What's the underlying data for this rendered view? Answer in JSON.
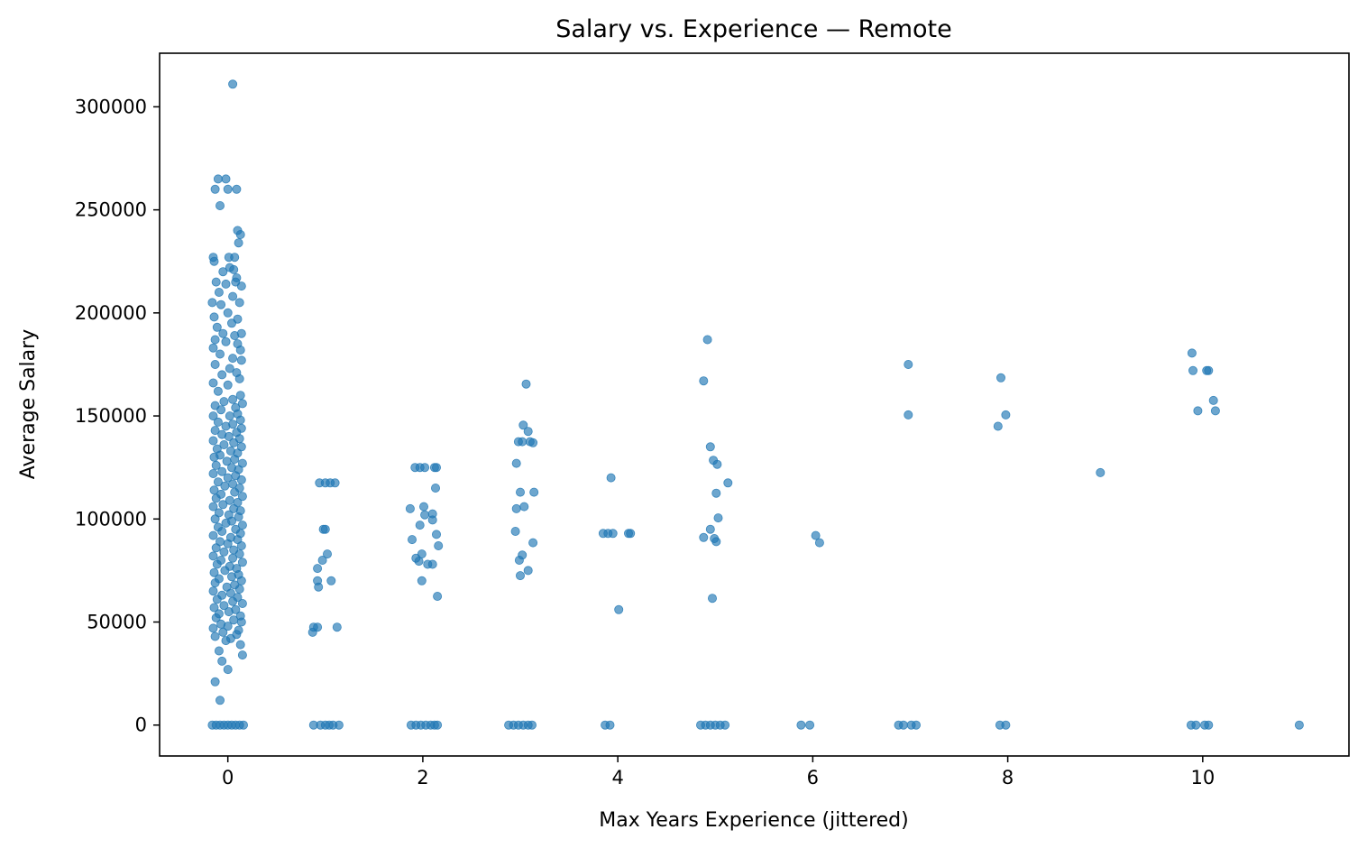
{
  "chart_data": {
    "type": "scatter",
    "title": "Salary vs. Experience — Remote",
    "xlabel": "Max Years Experience (jittered)",
    "ylabel": "Average Salary",
    "xlim": [
      -0.7,
      11.5
    ],
    "ylim": [
      -15000,
      326000
    ],
    "xticks": [
      0,
      2,
      4,
      6,
      8,
      10
    ],
    "yticks": [
      0,
      50000,
      100000,
      150000,
      200000,
      250000,
      300000
    ],
    "grid": false,
    "legend": "none",
    "color": "#1f77b4",
    "series": [
      {
        "points": [
          [
            0.05,
            311000
          ],
          [
            -0.1,
            265000
          ],
          [
            -0.02,
            265000
          ],
          [
            -0.13,
            260000
          ],
          [
            0.0,
            260000
          ],
          [
            0.09,
            260000
          ],
          [
            -0.08,
            252000
          ],
          [
            0.1,
            240000
          ],
          [
            0.13,
            238000
          ],
          [
            0.11,
            234000
          ],
          [
            -0.15,
            227000
          ],
          [
            0.01,
            227000
          ],
          [
            0.07,
            227000
          ],
          [
            -0.14,
            225000
          ],
          [
            0.02,
            222000
          ],
          [
            0.06,
            221000
          ],
          [
            -0.05,
            220000
          ],
          [
            0.09,
            217000
          ],
          [
            -0.12,
            215000
          ],
          [
            0.08,
            215000
          ],
          [
            -0.02,
            214000
          ],
          [
            0.14,
            213000
          ],
          [
            -0.09,
            210000
          ],
          [
            0.05,
            208000
          ],
          [
            -0.16,
            205000
          ],
          [
            0.12,
            205000
          ],
          [
            -0.07,
            204000
          ],
          [
            0.0,
            200000
          ],
          [
            -0.14,
            198000
          ],
          [
            0.1,
            197000
          ],
          [
            0.04,
            195000
          ],
          [
            -0.11,
            193000
          ],
          [
            -0.05,
            190000
          ],
          [
            0.14,
            190000
          ],
          [
            0.07,
            189000
          ],
          [
            -0.13,
            187000
          ],
          [
            -0.02,
            186000
          ],
          [
            0.1,
            185000
          ],
          [
            -0.15,
            183000
          ],
          [
            0.13,
            182000
          ],
          [
            -0.08,
            180000
          ],
          [
            0.05,
            178000
          ],
          [
            0.14,
            177000
          ],
          [
            -0.13,
            175000
          ],
          [
            0.02,
            173000
          ],
          [
            0.09,
            171000
          ],
          [
            -0.06,
            170000
          ],
          [
            0.12,
            168000
          ],
          [
            -0.15,
            166000
          ],
          [
            0.0,
            165000
          ],
          [
            -0.1,
            162000
          ],
          [
            0.13,
            160000
          ],
          [
            0.05,
            158000
          ],
          [
            -0.04,
            157000
          ],
          [
            0.15,
            156000
          ],
          [
            -0.13,
            155000
          ],
          [
            0.08,
            154000
          ],
          [
            -0.07,
            153000
          ],
          [
            0.1,
            151000
          ],
          [
            -0.15,
            150000
          ],
          [
            0.02,
            150000
          ],
          [
            0.13,
            148000
          ],
          [
            -0.1,
            147000
          ],
          [
            0.05,
            146000
          ],
          [
            -0.02,
            145000
          ],
          [
            0.14,
            144000
          ],
          [
            -0.13,
            143000
          ],
          [
            0.09,
            142000
          ],
          [
            -0.06,
            141000
          ],
          [
            0.01,
            140000
          ],
          [
            0.12,
            139000
          ],
          [
            -0.15,
            138000
          ],
          [
            0.06,
            137000
          ],
          [
            -0.04,
            136000
          ],
          [
            0.14,
            135000
          ],
          [
            -0.11,
            134000
          ],
          [
            0.03,
            133000
          ],
          [
            0.1,
            132000
          ],
          [
            -0.08,
            131000
          ],
          [
            -0.14,
            130000
          ],
          [
            0.07,
            129000
          ],
          [
            -0.01,
            128000
          ],
          [
            0.15,
            127000
          ],
          [
            -0.12,
            126000
          ],
          [
            0.04,
            125000
          ],
          [
            0.11,
            124000
          ],
          [
            -0.06,
            123000
          ],
          [
            -0.15,
            122000
          ],
          [
            0.08,
            121000
          ],
          [
            0.0,
            120000
          ],
          [
            0.14,
            119000
          ],
          [
            -0.1,
            118000
          ],
          [
            0.05,
            117000
          ],
          [
            -0.03,
            116000
          ],
          [
            0.12,
            115000
          ],
          [
            -0.14,
            114000
          ],
          [
            0.07,
            113000
          ],
          [
            -0.07,
            112000
          ],
          [
            0.15,
            111000
          ],
          [
            -0.12,
            110000
          ],
          [
            0.02,
            109000
          ],
          [
            0.1,
            108000
          ],
          [
            -0.05,
            107000
          ],
          [
            -0.15,
            106000
          ],
          [
            0.06,
            105000
          ],
          [
            0.13,
            104000
          ],
          [
            -0.09,
            103000
          ],
          [
            0.01,
            102000
          ],
          [
            0.11,
            101000
          ],
          [
            -0.13,
            100000
          ],
          [
            0.04,
            99000
          ],
          [
            -0.02,
            98000
          ],
          [
            0.15,
            97000
          ],
          [
            -0.1,
            96000
          ],
          [
            0.08,
            95000
          ],
          [
            -0.06,
            94000
          ],
          [
            0.13,
            93000
          ],
          [
            -0.15,
            92000
          ],
          [
            0.03,
            91000
          ],
          [
            0.1,
            90000
          ],
          [
            -0.08,
            89000
          ],
          [
            0.0,
            88000
          ],
          [
            0.14,
            87000
          ],
          [
            -0.12,
            86000
          ],
          [
            0.06,
            85000
          ],
          [
            -0.04,
            84000
          ],
          [
            0.12,
            83000
          ],
          [
            -0.15,
            82000
          ],
          [
            0.05,
            81000
          ],
          [
            -0.07,
            80000
          ],
          [
            0.15,
            79000
          ],
          [
            -0.11,
            78000
          ],
          [
            0.02,
            77000
          ],
          [
            0.09,
            76000
          ],
          [
            -0.03,
            75000
          ],
          [
            -0.14,
            74000
          ],
          [
            0.11,
            73000
          ],
          [
            0.04,
            72000
          ],
          [
            -0.09,
            71000
          ],
          [
            0.14,
            70000
          ],
          [
            -0.13,
            69000
          ],
          [
            0.07,
            68000
          ],
          [
            -0.01,
            67000
          ],
          [
            0.12,
            66000
          ],
          [
            -0.15,
            65000
          ],
          [
            0.03,
            64000
          ],
          [
            -0.06,
            63000
          ],
          [
            0.1,
            62000
          ],
          [
            -0.11,
            61000
          ],
          [
            0.05,
            60000
          ],
          [
            0.15,
            59000
          ],
          [
            -0.04,
            58000
          ],
          [
            -0.14,
            57000
          ],
          [
            0.08,
            56000
          ],
          [
            0.01,
            55000
          ],
          [
            -0.09,
            54000
          ],
          [
            0.13,
            53000
          ],
          [
            -0.12,
            52000
          ],
          [
            0.06,
            51000
          ],
          [
            0.14,
            50000
          ],
          [
            -0.07,
            49000
          ],
          [
            0.0,
            48000
          ],
          [
            -0.15,
            47000
          ],
          [
            0.11,
            46000
          ],
          [
            -0.05,
            45000
          ],
          [
            0.09,
            44000
          ],
          [
            -0.13,
            43000
          ],
          [
            0.03,
            42000
          ],
          [
            -0.02,
            41000
          ],
          [
            0.13,
            39000
          ],
          [
            -0.09,
            36000
          ],
          [
            0.15,
            34000
          ],
          [
            -0.06,
            31000
          ],
          [
            0.0,
            27000
          ],
          [
            -0.13,
            21000
          ],
          [
            -0.08,
            12000
          ],
          [
            -0.16,
            0
          ],
          [
            -0.12,
            0
          ],
          [
            -0.08,
            0
          ],
          [
            -0.04,
            0
          ],
          [
            0.0,
            0
          ],
          [
            0.04,
            0
          ],
          [
            0.08,
            0
          ],
          [
            0.12,
            0
          ],
          [
            0.16,
            0
          ],
          [
            0.94,
            117500
          ],
          [
            1.0,
            117500
          ],
          [
            1.05,
            117500
          ],
          [
            1.1,
            117500
          ],
          [
            0.98,
            95000
          ],
          [
            1.0,
            95000
          ],
          [
            1.02,
            83000
          ],
          [
            0.97,
            80000
          ],
          [
            0.92,
            76000
          ],
          [
            0.92,
            70000
          ],
          [
            1.06,
            70000
          ],
          [
            0.93,
            67000
          ],
          [
            0.88,
            47500
          ],
          [
            0.92,
            47500
          ],
          [
            0.87,
            45000
          ],
          [
            1.12,
            47500
          ],
          [
            0.88,
            0
          ],
          [
            0.95,
            0
          ],
          [
            1.0,
            0
          ],
          [
            1.04,
            0
          ],
          [
            1.08,
            0
          ],
          [
            1.14,
            0
          ],
          [
            1.92,
            125000
          ],
          [
            1.97,
            125000
          ],
          [
            2.02,
            125000
          ],
          [
            2.12,
            125000
          ],
          [
            2.14,
            125000
          ],
          [
            2.13,
            115000
          ],
          [
            2.01,
            106000
          ],
          [
            1.87,
            105000
          ],
          [
            2.02,
            102000
          ],
          [
            2.1,
            102500
          ],
          [
            2.1,
            99500
          ],
          [
            1.97,
            97000
          ],
          [
            2.14,
            92500
          ],
          [
            1.89,
            90000
          ],
          [
            2.16,
            87000
          ],
          [
            1.99,
            83000
          ],
          [
            1.93,
            81000
          ],
          [
            1.96,
            79500
          ],
          [
            2.05,
            78000
          ],
          [
            2.1,
            78000
          ],
          [
            1.99,
            70000
          ],
          [
            2.15,
            62500
          ],
          [
            1.88,
            0
          ],
          [
            1.93,
            0
          ],
          [
            1.98,
            0
          ],
          [
            2.03,
            0
          ],
          [
            2.08,
            0
          ],
          [
            2.12,
            0
          ],
          [
            2.15,
            0
          ],
          [
            3.06,
            165500
          ],
          [
            3.03,
            145500
          ],
          [
            3.08,
            142500
          ],
          [
            2.98,
            137500
          ],
          [
            3.02,
            137500
          ],
          [
            3.1,
            137500
          ],
          [
            3.13,
            137000
          ],
          [
            2.96,
            127000
          ],
          [
            3.0,
            113000
          ],
          [
            3.14,
            113000
          ],
          [
            3.04,
            106000
          ],
          [
            2.96,
            105000
          ],
          [
            2.95,
            94000
          ],
          [
            3.13,
            88500
          ],
          [
            3.02,
            82500
          ],
          [
            2.99,
            80000
          ],
          [
            3.08,
            75000
          ],
          [
            3.0,
            72500
          ],
          [
            2.88,
            0
          ],
          [
            2.93,
            0
          ],
          [
            2.98,
            0
          ],
          [
            3.03,
            0
          ],
          [
            3.08,
            0
          ],
          [
            3.12,
            0
          ],
          [
            3.93,
            120000
          ],
          [
            3.85,
            93000
          ],
          [
            3.9,
            93000
          ],
          [
            3.95,
            93000
          ],
          [
            4.11,
            93000
          ],
          [
            4.13,
            93000
          ],
          [
            4.01,
            56000
          ],
          [
            3.87,
            0
          ],
          [
            3.92,
            0
          ],
          [
            4.92,
            187000
          ],
          [
            4.88,
            167000
          ],
          [
            4.95,
            135000
          ],
          [
            4.98,
            128500
          ],
          [
            5.02,
            126500
          ],
          [
            5.13,
            117500
          ],
          [
            5.01,
            112500
          ],
          [
            5.03,
            100500
          ],
          [
            4.95,
            95000
          ],
          [
            4.88,
            91000
          ],
          [
            4.99,
            90500
          ],
          [
            5.01,
            89000
          ],
          [
            4.97,
            61500
          ],
          [
            4.85,
            0
          ],
          [
            4.9,
            0
          ],
          [
            4.95,
            0
          ],
          [
            5.0,
            0
          ],
          [
            5.05,
            0
          ],
          [
            5.1,
            0
          ],
          [
            6.03,
            92000
          ],
          [
            6.07,
            88500
          ],
          [
            5.88,
            0
          ],
          [
            5.97,
            0
          ],
          [
            6.98,
            175000
          ],
          [
            6.98,
            150500
          ],
          [
            6.88,
            0
          ],
          [
            6.93,
            0
          ],
          [
            7.01,
            0
          ],
          [
            7.06,
            0
          ],
          [
            7.93,
            168500
          ],
          [
            7.9,
            145000
          ],
          [
            7.98,
            150500
          ],
          [
            7.92,
            0
          ],
          [
            7.98,
            0
          ],
          [
            8.95,
            122500
          ],
          [
            9.89,
            180500
          ],
          [
            9.9,
            172000
          ],
          [
            10.06,
            172000
          ],
          [
            10.04,
            172000
          ],
          [
            10.11,
            157500
          ],
          [
            9.95,
            152500
          ],
          [
            10.13,
            152500
          ],
          [
            9.88,
            0
          ],
          [
            9.93,
            0
          ],
          [
            10.02,
            0
          ],
          [
            10.06,
            0
          ],
          [
            10.99,
            0
          ]
        ]
      }
    ]
  }
}
